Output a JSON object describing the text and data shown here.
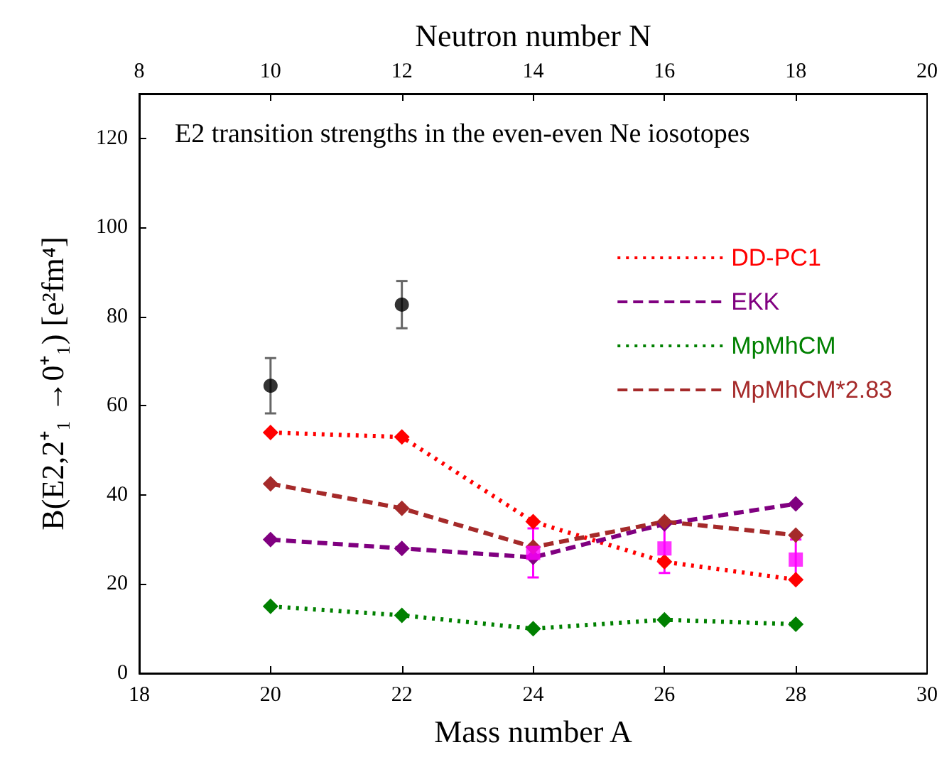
{
  "chart_data": {
    "type": "line",
    "title": "E2 transition strengths in the even-even Ne iosotopes",
    "xlabel": "Mass number A",
    "ylabel": "B(E2,2⁺₁ →0⁺₁) [e²fm⁴]",
    "x2label": "Neutron number N",
    "x": [
      20,
      22,
      24,
      26,
      28
    ],
    "xlim": [
      18,
      30
    ],
    "xticks": [
      18,
      20,
      22,
      24,
      26,
      28,
      30
    ],
    "x2lim": [
      8,
      20
    ],
    "x2ticks": [
      8,
      10,
      12,
      14,
      16,
      18,
      20
    ],
    "ylim": [
      0,
      130
    ],
    "yticks": [
      0,
      20,
      40,
      60,
      80,
      100,
      120
    ],
    "grid": false,
    "legend": "right",
    "marker": "diamond",
    "series": [
      {
        "name": "DD-PC1",
        "color": "#ff0000",
        "line_style": "dotted",
        "values": [
          54,
          53,
          34,
          25,
          21
        ]
      },
      {
        "name": "EKK",
        "color": "#800080",
        "line_style": "dashed",
        "values": [
          30,
          28,
          26,
          33.5,
          38
        ]
      },
      {
        "name": "MpMhCM",
        "color": "#008000",
        "line_style": "dotted",
        "values": [
          15,
          13,
          10,
          12,
          11
        ]
      },
      {
        "name": "MpMhCM*2.83",
        "color": "#a52a2a",
        "line_style": "dashed",
        "values": [
          42.5,
          37,
          28.3,
          34,
          31
        ]
      },
      {
        "type": "scatter",
        "marker": "circle",
        "color": "#000000",
        "x": [
          20,
          22
        ],
        "values": [
          64.5,
          82.7
        ],
        "errors": [
          6.2,
          5.3
        ]
      },
      {
        "type": "scatter",
        "marker": "square",
        "color": "#ff00ff",
        "x": [
          24,
          26,
          28
        ],
        "values": [
          27,
          28,
          25.5
        ],
        "errors": [
          5.5,
          5.5,
          4.5
        ]
      }
    ]
  }
}
